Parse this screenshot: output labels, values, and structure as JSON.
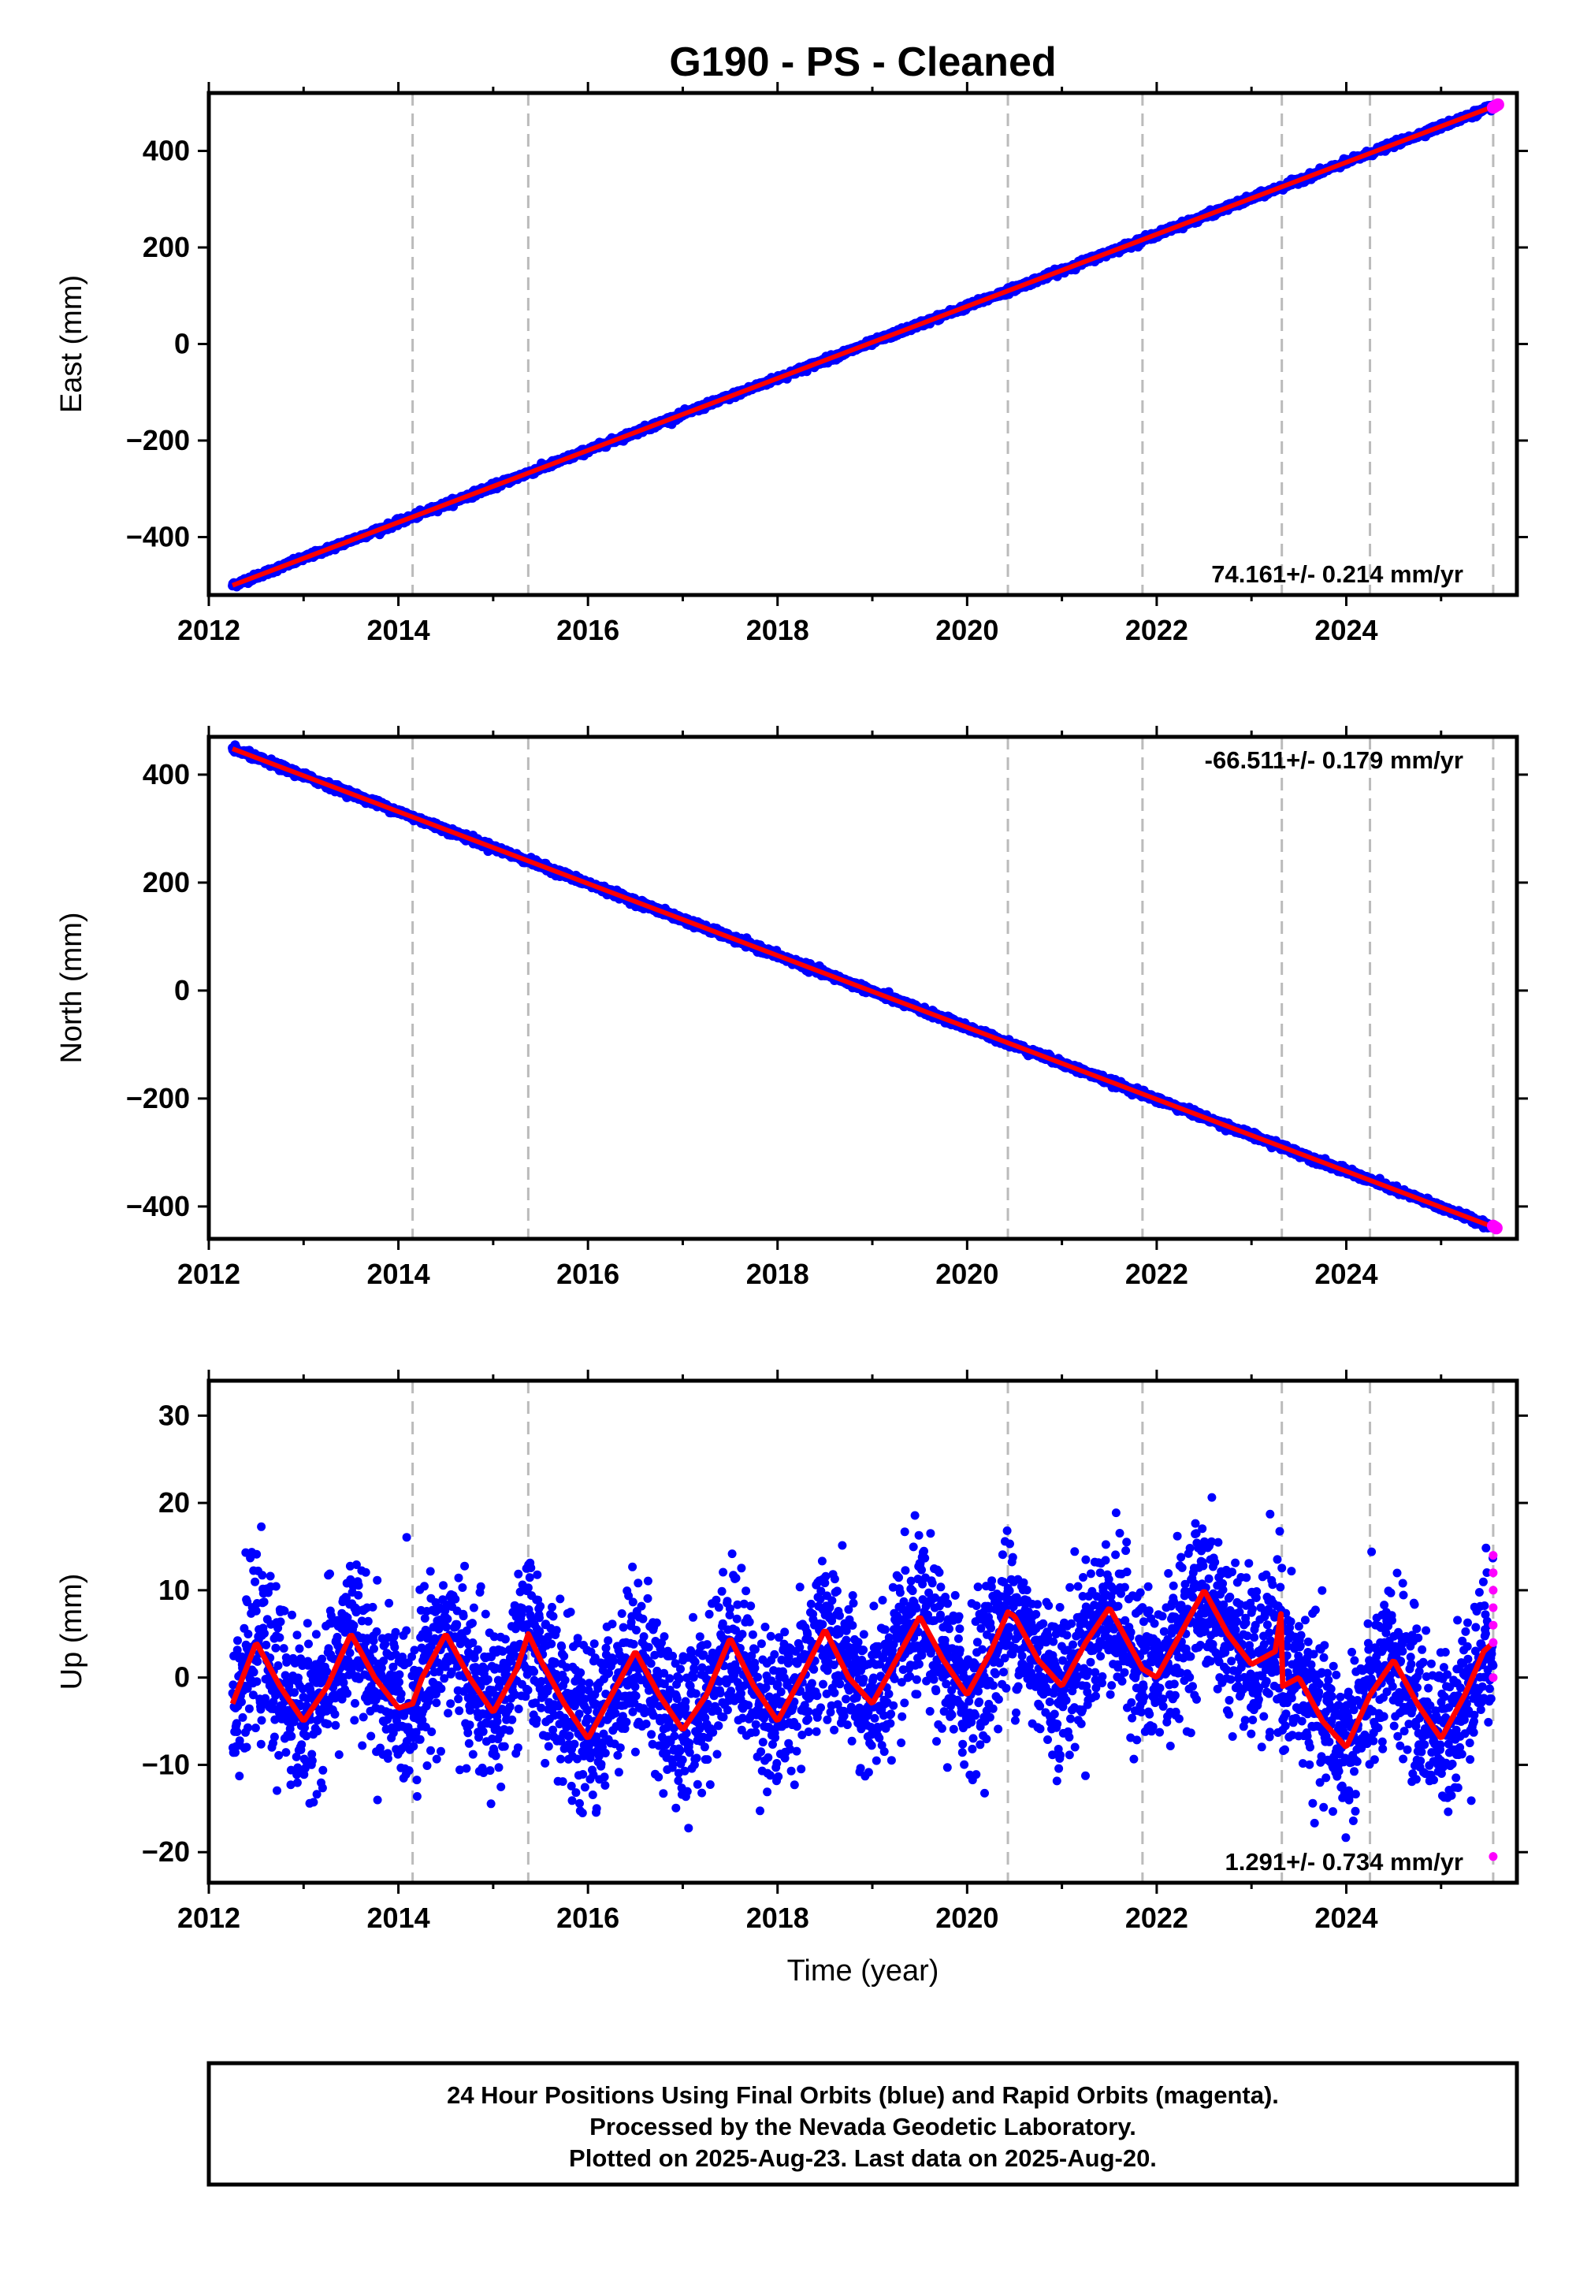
{
  "colors": {
    "final": "#0000ff",
    "rapid": "#ff00ff",
    "model": "#ff0000",
    "step_line": "#bbbbbb",
    "frame": "#000000"
  },
  "chart_data": {
    "type": "scatter",
    "title": "G190  - PS - Cleaned",
    "xlabel": "Time (year)",
    "xlim": [
      2012.0,
      2025.8
    ],
    "x_ticks": [
      "2012",
      "2014",
      "2016",
      "2018",
      "2020",
      "2022",
      "2024"
    ],
    "step_lines_year": [
      2014.15,
      2015.37,
      2020.43,
      2021.85,
      2023.32,
      2024.25,
      2025.55
    ],
    "data_start_year": 2012.25,
    "data_end_year": 2025.55,
    "panels": [
      {
        "name": "east",
        "ylabel": "East (mm)",
        "ylim": [
          -520,
          520
        ],
        "y_ticks": [
          "400",
          "200",
          "0",
          "−200",
          "−400"
        ],
        "y_tick_values": [
          400,
          200,
          0,
          -200,
          -400
        ],
        "rate_text": "74.161+/- 0.214 mm/yr",
        "rate_position": "bottom-right",
        "series": [
          {
            "name": "Final Orbits (blue)",
            "start": -500,
            "end": 492,
            "scatter_mm": 3
          },
          {
            "name": "Rapid Orbits (magenta)",
            "values_mm": [
              490,
              492,
              494,
              496
            ]
          }
        ]
      },
      {
        "name": "north",
        "ylabel": "North (mm)",
        "ylim": [
          -460,
          470
        ],
        "y_ticks": [
          "400",
          "200",
          "0",
          "−200",
          "−400"
        ],
        "y_tick_values": [
          400,
          200,
          0,
          -200,
          -400
        ],
        "rate_text": "-66.511+/- 0.179 mm/yr",
        "rate_position": "top-right",
        "series": [
          {
            "name": "Final Orbits (blue)",
            "start": 448,
            "end": -438,
            "scatter_mm": 3
          },
          {
            "name": "Rapid Orbits (magenta)",
            "values_mm": [
              -436,
              -438,
              -440
            ]
          }
        ]
      },
      {
        "name": "up",
        "ylabel": "Up (mm)",
        "ylim": [
          -23.5,
          34
        ],
        "y_ticks": [
          "30",
          "20",
          "10",
          "0",
          "−10",
          "−20"
        ],
        "y_tick_values": [
          30,
          20,
          10,
          0,
          -10,
          -20
        ],
        "rate_text": "1.291+/- 0.734 mm/yr",
        "rate_position": "bottom-right",
        "model_curve": {
          "description": "seasonal fit",
          "x": [
            2012.25,
            2012.5,
            2012.75,
            2013.0,
            2013.25,
            2013.5,
            2013.75,
            2014.0,
            2014.15,
            2014.25,
            2014.5,
            2014.75,
            2015.0,
            2015.25,
            2015.37,
            2015.5,
            2015.75,
            2016.0,
            2016.25,
            2016.5,
            2016.75,
            2017.0,
            2017.25,
            2017.5,
            2017.75,
            2018.0,
            2018.25,
            2018.5,
            2018.75,
            2019.0,
            2019.25,
            2019.5,
            2019.75,
            2020.0,
            2020.25,
            2020.43,
            2020.5,
            2020.75,
            2021.0,
            2021.25,
            2021.5,
            2021.75,
            2021.85,
            2022.0,
            2022.25,
            2022.5,
            2022.75,
            2023.0,
            2023.25,
            2023.32,
            2023.33,
            2023.5,
            2023.75,
            2024.0,
            2024.25,
            2024.5,
            2024.75,
            2025.0,
            2025.25,
            2025.45,
            2025.55
          ],
          "y": [
            -3,
            4,
            -1,
            -5,
            -1,
            5,
            0,
            -3.5,
            -3,
            0,
            5,
            0,
            -4,
            1,
            5,
            2,
            -3,
            -7,
            -2,
            3,
            -2,
            -6,
            -2,
            4.5,
            -1,
            -5,
            0,
            5.5,
            0,
            -3,
            2,
            7,
            2,
            -2,
            3,
            7.5,
            7,
            2,
            -1,
            4,
            8,
            3,
            1,
            0,
            5,
            10,
            5,
            1.5,
            3,
            8,
            -1,
            0,
            -5,
            -8,
            -2,
            2,
            -3,
            -7,
            -2,
            3,
            4
          ]
        },
        "series": [
          {
            "name": "Final Orbits (blue)",
            "scatter_mm": 4.5,
            "note": "about 5000 daily solutions scattered around the seasonal fit"
          },
          {
            "name": "Rapid Orbits (magenta)",
            "values_mm": [
              14,
              12,
              10,
              6,
              4,
              0,
              8,
              -20.5
            ]
          }
        ]
      }
    ]
  },
  "footer": {
    "line1": "24 Hour Positions Using Final Orbits (blue) and Rapid Orbits (magenta).",
    "line2": "Processed by the Nevada Geodetic Laboratory.",
    "line3": "Plotted on 2025-Aug-23. Last data on 2025-Aug-20."
  }
}
